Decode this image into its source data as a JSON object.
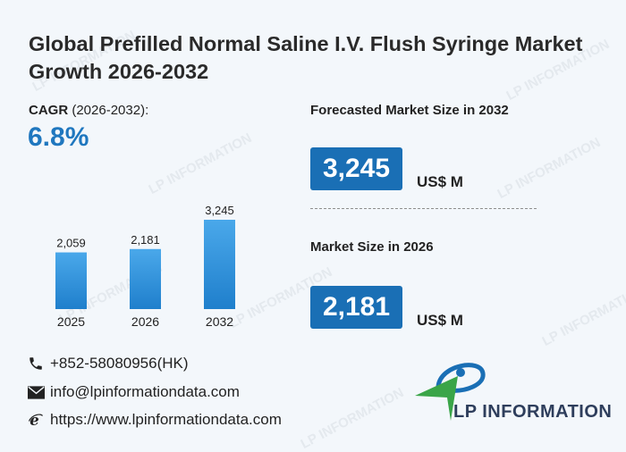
{
  "title": "Global Prefilled Normal Saline I.V. Flush Syringe Market Growth 2026-2032",
  "cagr": {
    "label": "CAGR",
    "period": "(2026-2032):",
    "value": "6.8%"
  },
  "forecast": {
    "label": "Forecasted Market Size in 2032",
    "value": "3,245",
    "unit": "US$ M"
  },
  "current": {
    "label": "Market Size in 2026",
    "value": "2,181",
    "unit": "US$ M"
  },
  "chart_data": {
    "type": "bar",
    "categories": [
      "2025",
      "2026",
      "2032"
    ],
    "values": [
      2059,
      2181,
      3245
    ],
    "value_labels": [
      "2,059",
      "2,181",
      "3,245"
    ],
    "color": "#2f93dc"
  },
  "contacts": {
    "phone": "+852-58080956(HK)",
    "email": "info@lpinformationdata.com",
    "website": "https://www.lpinformationdata.com"
  },
  "icons": {
    "phone": "phone-icon",
    "email": "envelope-icon",
    "website": "ie-e-icon"
  },
  "logo": {
    "text": "LP INFORMATION",
    "colors": {
      "blue": "#1a6fb5",
      "green": "#3aa548",
      "dark": "#2e3e5c"
    }
  },
  "watermark": "LP INFORMATION"
}
